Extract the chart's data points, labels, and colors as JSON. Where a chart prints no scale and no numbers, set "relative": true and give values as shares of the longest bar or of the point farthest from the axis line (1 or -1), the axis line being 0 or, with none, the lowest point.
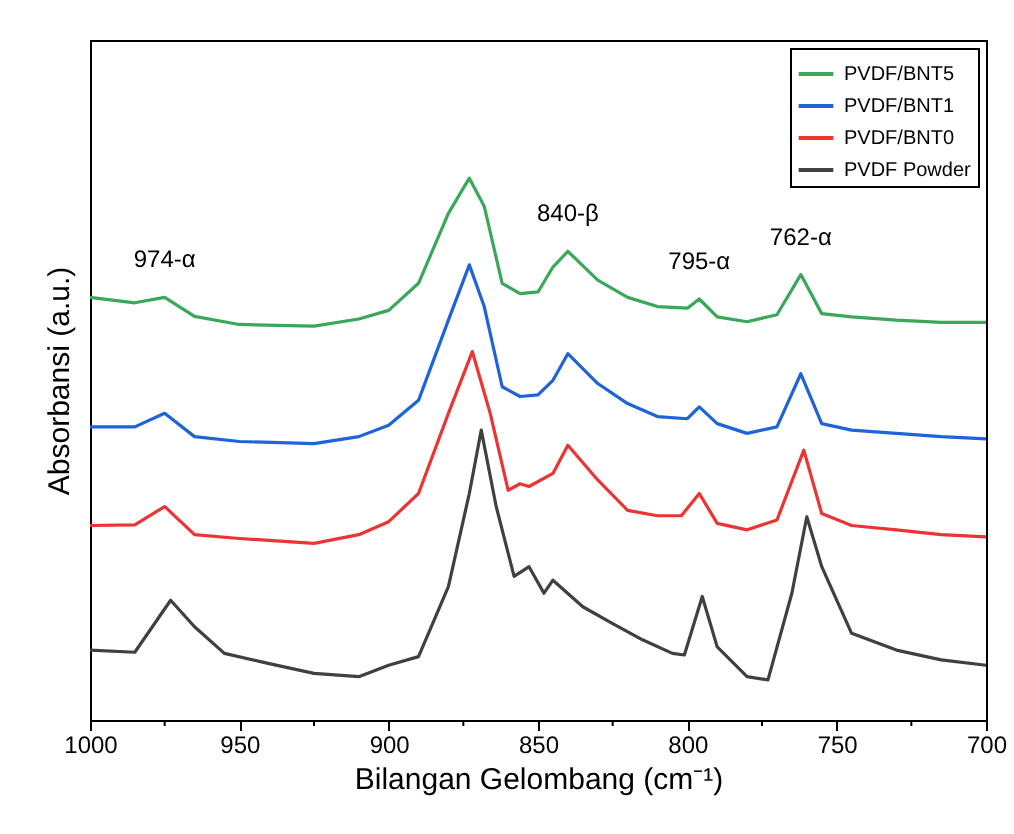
{
  "chart_data": {
    "type": "line",
    "relative": true,
    "xlabel": "Bilangan Gelombang (cm⁻¹)",
    "ylabel": "Absorbansi (a.u.)",
    "xlim": [
      1000,
      700
    ],
    "xticks": [
      1000,
      {
        "value": 975,
        "label": null
      },
      950,
      {
        "value": 925,
        "label": null
      },
      900,
      {
        "value": 875,
        "label": null
      },
      850,
      {
        "value": 825,
        "label": null
      },
      800,
      {
        "value": 775,
        "label": null
      },
      750,
      {
        "value": 725,
        "label": null
      },
      700
    ],
    "tick_labels": "x",
    "grid": false,
    "legend": "top right",
    "marker": "none",
    "line_style": "solid",
    "x": [
      1000,
      985,
      975,
      965,
      950,
      925,
      910,
      900,
      890,
      880,
      873,
      868,
      862,
      856,
      850,
      845,
      840,
      830,
      820,
      810,
      800,
      796,
      790,
      780,
      770,
      762,
      755,
      745,
      730,
      715,
      700
    ],
    "series": [
      {
        "name": "PVDF/BNT5",
        "color": "#3aa85a",
        "values": [
          0.78,
          0.77,
          0.78,
          0.745,
          0.73,
          0.727,
          0.74,
          0.756,
          0.806,
          0.935,
          1.0,
          0.948,
          0.806,
          0.787,
          0.79,
          0.836,
          0.865,
          0.812,
          0.78,
          0.763,
          0.76,
          0.777,
          0.744,
          0.735,
          0.748,
          0.822,
          0.75,
          0.744,
          0.738,
          0.734,
          0.734
        ]
      },
      {
        "name": "PVDF/BNT1",
        "color": "#1f63d8",
        "values": [
          0.541,
          0.541,
          0.566,
          0.523,
          0.514,
          0.51,
          0.523,
          0.544,
          0.59,
          0.738,
          0.84,
          0.763,
          0.615,
          0.597,
          0.6,
          0.627,
          0.676,
          0.621,
          0.584,
          0.56,
          0.556,
          0.578,
          0.547,
          0.529,
          0.541,
          0.639,
          0.547,
          0.535,
          0.529,
          0.523,
          0.519
        ]
      },
      {
        "name": "PVDF/BNT0",
        "color": "#ec3434",
        "x": [
          1000,
          985,
          975,
          965,
          950,
          925,
          910,
          900,
          890,
          880,
          872,
          866,
          860,
          856,
          853,
          845,
          840,
          830,
          820,
          810,
          802,
          796,
          790,
          780,
          770,
          761,
          755,
          745,
          730,
          715,
          700
        ],
        "values": [
          0.359,
          0.36,
          0.394,
          0.342,
          0.335,
          0.326,
          0.342,
          0.366,
          0.418,
          0.566,
          0.68,
          0.566,
          0.424,
          0.436,
          0.431,
          0.455,
          0.507,
          0.443,
          0.387,
          0.377,
          0.377,
          0.418,
          0.363,
          0.351,
          0.369,
          0.498,
          0.381,
          0.359,
          0.351,
          0.342,
          0.338
        ]
      },
      {
        "name": "PVDF Powder",
        "color": "#404040",
        "x": [
          1000,
          985,
          973,
          965,
          955,
          940,
          925,
          910,
          900,
          890,
          880,
          873,
          869,
          864,
          858,
          853,
          848,
          845,
          835,
          825,
          815,
          805,
          801,
          795,
          790,
          780,
          773,
          765,
          760,
          755,
          745,
          730,
          715,
          700
        ],
        "values": [
          0.129,
          0.125,
          0.221,
          0.172,
          0.123,
          0.104,
          0.086,
          0.08,
          0.101,
          0.117,
          0.246,
          0.418,
          0.535,
          0.394,
          0.265,
          0.283,
          0.234,
          0.258,
          0.209,
          0.178,
          0.148,
          0.123,
          0.12,
          0.228,
          0.135,
          0.08,
          0.074,
          0.234,
          0.375,
          0.283,
          0.16,
          0.129,
          0.111,
          0.101
        ]
      }
    ],
    "annotations": [
      {
        "text": "974-α",
        "x": 975,
        "y": 0.78
      },
      {
        "text": "840-β",
        "x": 840,
        "y": 0.865
      },
      {
        "text": "795-α",
        "x": 796,
        "y": 0.777
      },
      {
        "text": "762-α",
        "x": 762,
        "y": 0.822
      }
    ]
  }
}
